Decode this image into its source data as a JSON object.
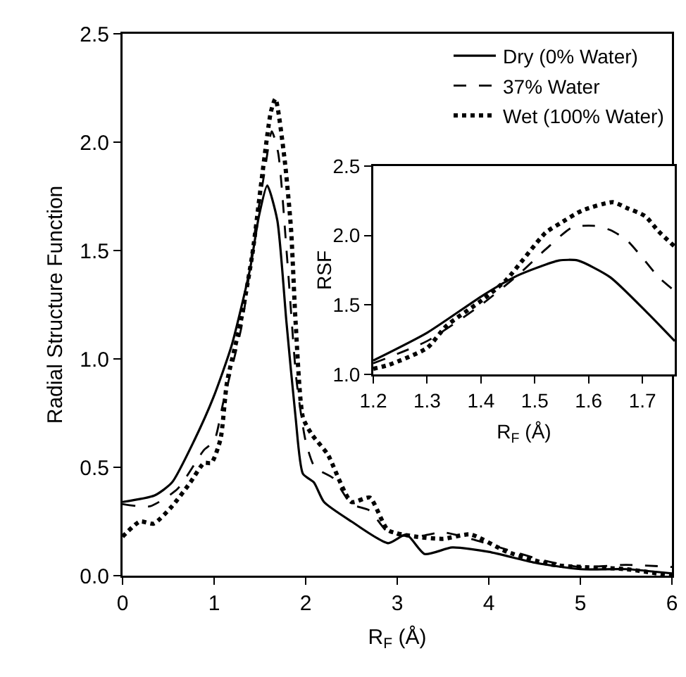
{
  "chart_data": [
    {
      "type": "line",
      "xlabel": "R$_{F}$ (Å)",
      "ylabel": "Radial Structure Function",
      "legend": "top right",
      "xlim": [
        0,
        6
      ],
      "xticks": [
        0,
        1,
        2,
        3,
        4,
        5,
        6
      ],
      "ylim": [
        0,
        2.5
      ],
      "yticks": [
        {
          "value": 0,
          "label": "0.0"
        },
        {
          "value": 0.5,
          "label": "0.5"
        },
        {
          "value": 1,
          "label": "1.0"
        },
        {
          "value": 1.5,
          "label": "1.5"
        },
        {
          "value": 2,
          "label": "2.0"
        },
        {
          "value": 2.5,
          "label": "2.5"
        }
      ],
      "series": [
        {
          "name": "Dry (0% Water)",
          "color": "#000000",
          "line_style": "solid",
          "x": [
            0,
            0.35,
            0.54,
            0.79,
            0.99,
            1.19,
            1.39,
            1.49,
            1.58,
            1.69,
            1.79,
            1.89,
            1.97,
            2.09,
            2.2,
            2.5,
            2.9,
            3.1,
            3.3,
            3.6,
            4,
            4.5,
            5,
            5.5,
            6
          ],
          "values": [
            0.34,
            0.37,
            0.43,
            0.63,
            0.82,
            1.06,
            1.41,
            1.66,
            1.8,
            1.64,
            1.17,
            0.73,
            0.47,
            0.43,
            0.34,
            0.25,
            0.15,
            0.19,
            0.1,
            0.13,
            0.11,
            0.06,
            0.03,
            0.03,
            0.01
          ]
        },
        {
          "name": "37% Water",
          "color": "#000000",
          "line_style": "dashed",
          "x": [
            0,
            0.3,
            0.6,
            0.89,
            1,
            1.1,
            1.3,
            1.45,
            1.55,
            1.63,
            1.7,
            1.8,
            1.9,
            2,
            2.1,
            2.3,
            2.5,
            2.7,
            2.9,
            3.2,
            3.5,
            3.8,
            4.2,
            4.6,
            5,
            5.5,
            6
          ],
          "values": [
            0.33,
            0.32,
            0.4,
            0.58,
            0.62,
            0.8,
            1.15,
            1.6,
            1.86,
            2.05,
            1.95,
            1.45,
            0.9,
            0.62,
            0.5,
            0.45,
            0.33,
            0.3,
            0.2,
            0.18,
            0.2,
            0.17,
            0.12,
            0.07,
            0.04,
            0.05,
            0.04
          ]
        },
        {
          "name": "Wet (100% Water)",
          "color": "#000000",
          "line_style": "dotted",
          "x": [
            0,
            0.19,
            0.34,
            0.54,
            0.74,
            0.89,
            0.97,
            1.07,
            1.14,
            1.29,
            1.42,
            1.52,
            1.62,
            1.67,
            1.77,
            1.84,
            1.89,
            1.97,
            2.07,
            2.24,
            2.5,
            2.7,
            2.9,
            3.2,
            3.5,
            3.8,
            4.2,
            4.7,
            5.5,
            6
          ],
          "values": [
            0.18,
            0.25,
            0.24,
            0.32,
            0.43,
            0.52,
            0.52,
            0.63,
            0.89,
            1.17,
            1.49,
            1.83,
            2.14,
            2.2,
            1.92,
            1.6,
            1.17,
            0.73,
            0.65,
            0.56,
            0.34,
            0.36,
            0.21,
            0.18,
            0.17,
            0.19,
            0.11,
            0.05,
            0.03,
            0
          ]
        }
      ]
    },
    {
      "type": "line",
      "xlabel": "R$_{F}$ (Å)",
      "ylabel": "RSF",
      "legend": false,
      "xlim": [
        1.2,
        1.76
      ],
      "xticks": [
        1.2,
        1.3,
        1.4,
        1.5,
        1.6,
        1.7
      ],
      "ylim": [
        1,
        2.5
      ],
      "yticks": [
        {
          "value": 1,
          "label": "1.0"
        },
        {
          "value": 1.5,
          "label": "1.5"
        },
        {
          "value": 2,
          "label": "2.0"
        },
        {
          "value": 2.5,
          "label": "2.5"
        }
      ],
      "series": [
        {
          "color": "#000000",
          "line_style": "solid",
          "x": [
            1.2,
            1.3,
            1.404,
            1.467,
            1.545,
            1.58,
            1.64,
            1.71,
            1.76
          ],
          "values": [
            1.1,
            1.3,
            1.57,
            1.71,
            1.82,
            1.82,
            1.7,
            1.44,
            1.24
          ]
        },
        {
          "color": "#000000",
          "line_style": "dashed",
          "x": [
            1.2,
            1.3,
            1.4,
            1.47,
            1.52,
            1.57,
            1.61,
            1.64,
            1.67,
            1.7,
            1.73,
            1.76
          ],
          "values": [
            1.08,
            1.24,
            1.5,
            1.72,
            1.9,
            2.06,
            2.07,
            2.04,
            1.97,
            1.84,
            1.7,
            1.6
          ]
        },
        {
          "color": "#000000",
          "line_style": "dotted",
          "x": [
            1.2,
            1.23,
            1.3,
            1.336,
            1.404,
            1.447,
            1.52,
            1.548,
            1.588,
            1.645,
            1.67,
            1.705,
            1.73,
            1.76
          ],
          "values": [
            1.04,
            1.07,
            1.19,
            1.35,
            1.54,
            1.68,
            2.02,
            2.09,
            2.18,
            2.24,
            2.2,
            2.14,
            2.03,
            1.92
          ]
        }
      ]
    }
  ]
}
